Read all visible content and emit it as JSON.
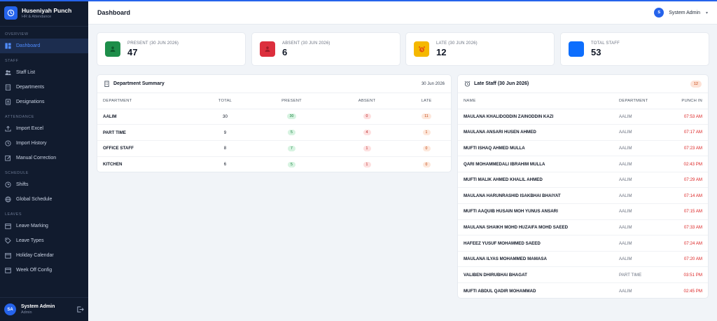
{
  "brand": {
    "name": "Huseniyah Punch",
    "subtitle": "HR & Attendance"
  },
  "nav": [
    {
      "section": "OVERVIEW",
      "items": [
        {
          "label": "Dashboard",
          "icon": "grid-icon",
          "active": true
        }
      ]
    },
    {
      "section": "STAFF",
      "items": [
        {
          "label": "Staff List",
          "icon": "users-icon"
        },
        {
          "label": "Departments",
          "icon": "building-icon"
        },
        {
          "label": "Designations",
          "icon": "id-card-icon"
        }
      ]
    },
    {
      "section": "ATTENDANCE",
      "items": [
        {
          "label": "Import Excel",
          "icon": "upload-icon"
        },
        {
          "label": "Import History",
          "icon": "history-icon"
        },
        {
          "label": "Manual Correction",
          "icon": "edit-icon"
        }
      ]
    },
    {
      "section": "SCHEDULE",
      "items": [
        {
          "label": "Shifts",
          "icon": "clock-icon"
        },
        {
          "label": "Global Schedule",
          "icon": "globe-icon"
        }
      ]
    },
    {
      "section": "LEAVES",
      "items": [
        {
          "label": "Leave Marking",
          "icon": "calendar-icon"
        },
        {
          "label": "Leave Types",
          "icon": "tag-icon"
        },
        {
          "label": "Holiday Calendar",
          "icon": "calendar-icon"
        },
        {
          "label": "Week Off Config",
          "icon": "calendar-icon"
        }
      ]
    }
  ],
  "user": {
    "initials": "SA",
    "name": "System Admin",
    "role": "Admin"
  },
  "header": {
    "title": "Dashboard",
    "user_initial": "S",
    "user_name": "System Admin",
    "caret": "▾"
  },
  "stats": [
    {
      "label": "PRESENT (30 JUN 2026)",
      "value": "47",
      "color": "#1e8e4a",
      "icon": "user-check-icon"
    },
    {
      "label": "ABSENT (30 JUN 2026)",
      "value": "6",
      "color": "#dc2f3d",
      "icon": "user-x-icon"
    },
    {
      "label": "LATE (30 JUN 2026)",
      "value": "12",
      "color": "#f5b800",
      "icon": "alarm-icon"
    },
    {
      "label": "TOTAL STAFF",
      "value": "53",
      "color": "#0d6efd",
      "icon": "people-icon"
    }
  ],
  "dept_summary": {
    "title": "Department Summary",
    "date": "30 Jun 2026",
    "columns": [
      "DEPARTMENT",
      "TOTAL",
      "PRESENT",
      "ABSENT",
      "LATE"
    ],
    "rows": [
      {
        "name": "AALIM",
        "total": "30",
        "present": "30",
        "absent": "0",
        "late": "11"
      },
      {
        "name": "PART TIME",
        "total": "9",
        "present": "5",
        "absent": "4",
        "late": "1"
      },
      {
        "name": "OFFICE STAFF",
        "total": "8",
        "present": "7",
        "absent": "1",
        "late": "0"
      },
      {
        "name": "KITCHEN",
        "total": "6",
        "present": "5",
        "absent": "1",
        "late": "0"
      }
    ]
  },
  "late_staff": {
    "title": "Late Staff (30 Jun 2026)",
    "count": "12",
    "columns": [
      "NAME",
      "DEPARTMENT",
      "PUNCH IN"
    ],
    "rows": [
      {
        "name": "MAULANA KHALIDODDIN ZAINODDIN KAZI",
        "dept": "AALIM",
        "punch": "07:53 AM"
      },
      {
        "name": "MAULANA ANSARI HUSEN AHMED",
        "dept": "AALIM",
        "punch": "07:17 AM"
      },
      {
        "name": "MUFTI ISHAQ AHMED MULLA",
        "dept": "AALIM",
        "punch": "07:23 AM"
      },
      {
        "name": "QARI MOHAMMEDALI IBRAHIM MULLA",
        "dept": "AALIM",
        "punch": "02:43 PM"
      },
      {
        "name": "MUFTI MALIK AHMED KHALIL AHMED",
        "dept": "AALIM",
        "punch": "07:29 AM"
      },
      {
        "name": "MAULANA HARUNRASHID ISAKBHAI BHAIYAT",
        "dept": "AALIM",
        "punch": "07:14 AM"
      },
      {
        "name": "MUFTI AAQUIB HUSAIN MOH YUNUS ANSARI",
        "dept": "AALIM",
        "punch": "07:15 AM"
      },
      {
        "name": "MAULANA SHAIKH MOHD HUZAIFA MOHD SAEED",
        "dept": "AALIM",
        "punch": "07:33 AM"
      },
      {
        "name": "HAFEEZ YUSUF MOHAMMED SAEED",
        "dept": "AALIM",
        "punch": "07:24 AM"
      },
      {
        "name": "MAULANA ILYAS MOHAMMED MAMASA",
        "dept": "AALIM",
        "punch": "07:20 AM"
      },
      {
        "name": "VALIBEN DHIRUBHAI BHAGAT",
        "dept": "PART TIME",
        "punch": "03:51 PM"
      },
      {
        "name": "MUFTI ABDUL QADIR MOHAMMAD",
        "dept": "AALIM",
        "punch": "02:45 PM"
      }
    ]
  }
}
